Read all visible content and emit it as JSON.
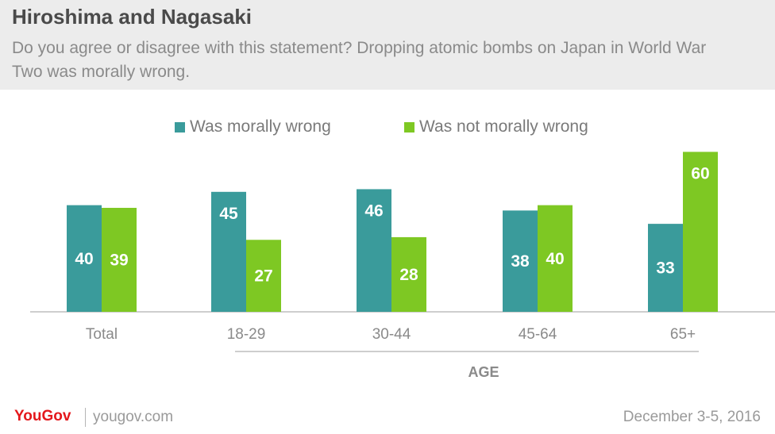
{
  "header": {
    "title": "Hiroshima and Nagasaki",
    "subtitle": "Do you agree or disagree with this statement? Dropping atomic bombs on Japan in World War Two was morally wrong."
  },
  "colors": {
    "header_bg": "#ececec",
    "series_wrong": "#3a9b9b",
    "series_not_wrong": "#7ec823",
    "brand_red": "#e4181c"
  },
  "chart_data": {
    "type": "bar",
    "categories": [
      "Total",
      "18-29",
      "30-44",
      "45-64",
      "65+"
    ],
    "series": [
      {
        "name": "Was morally wrong",
        "values": [
          40,
          45,
          46,
          38,
          33
        ]
      },
      {
        "name": "Was not morally wrong",
        "values": [
          39,
          27,
          28,
          40,
          60
        ]
      }
    ],
    "group_label": "AGE",
    "ylim": [
      0,
      65
    ],
    "grid": false,
    "legend_position": "top-center"
  },
  "footer": {
    "logo_you": "YouGov",
    "site": "yougov.com",
    "date": "December 3-5, 2016"
  }
}
